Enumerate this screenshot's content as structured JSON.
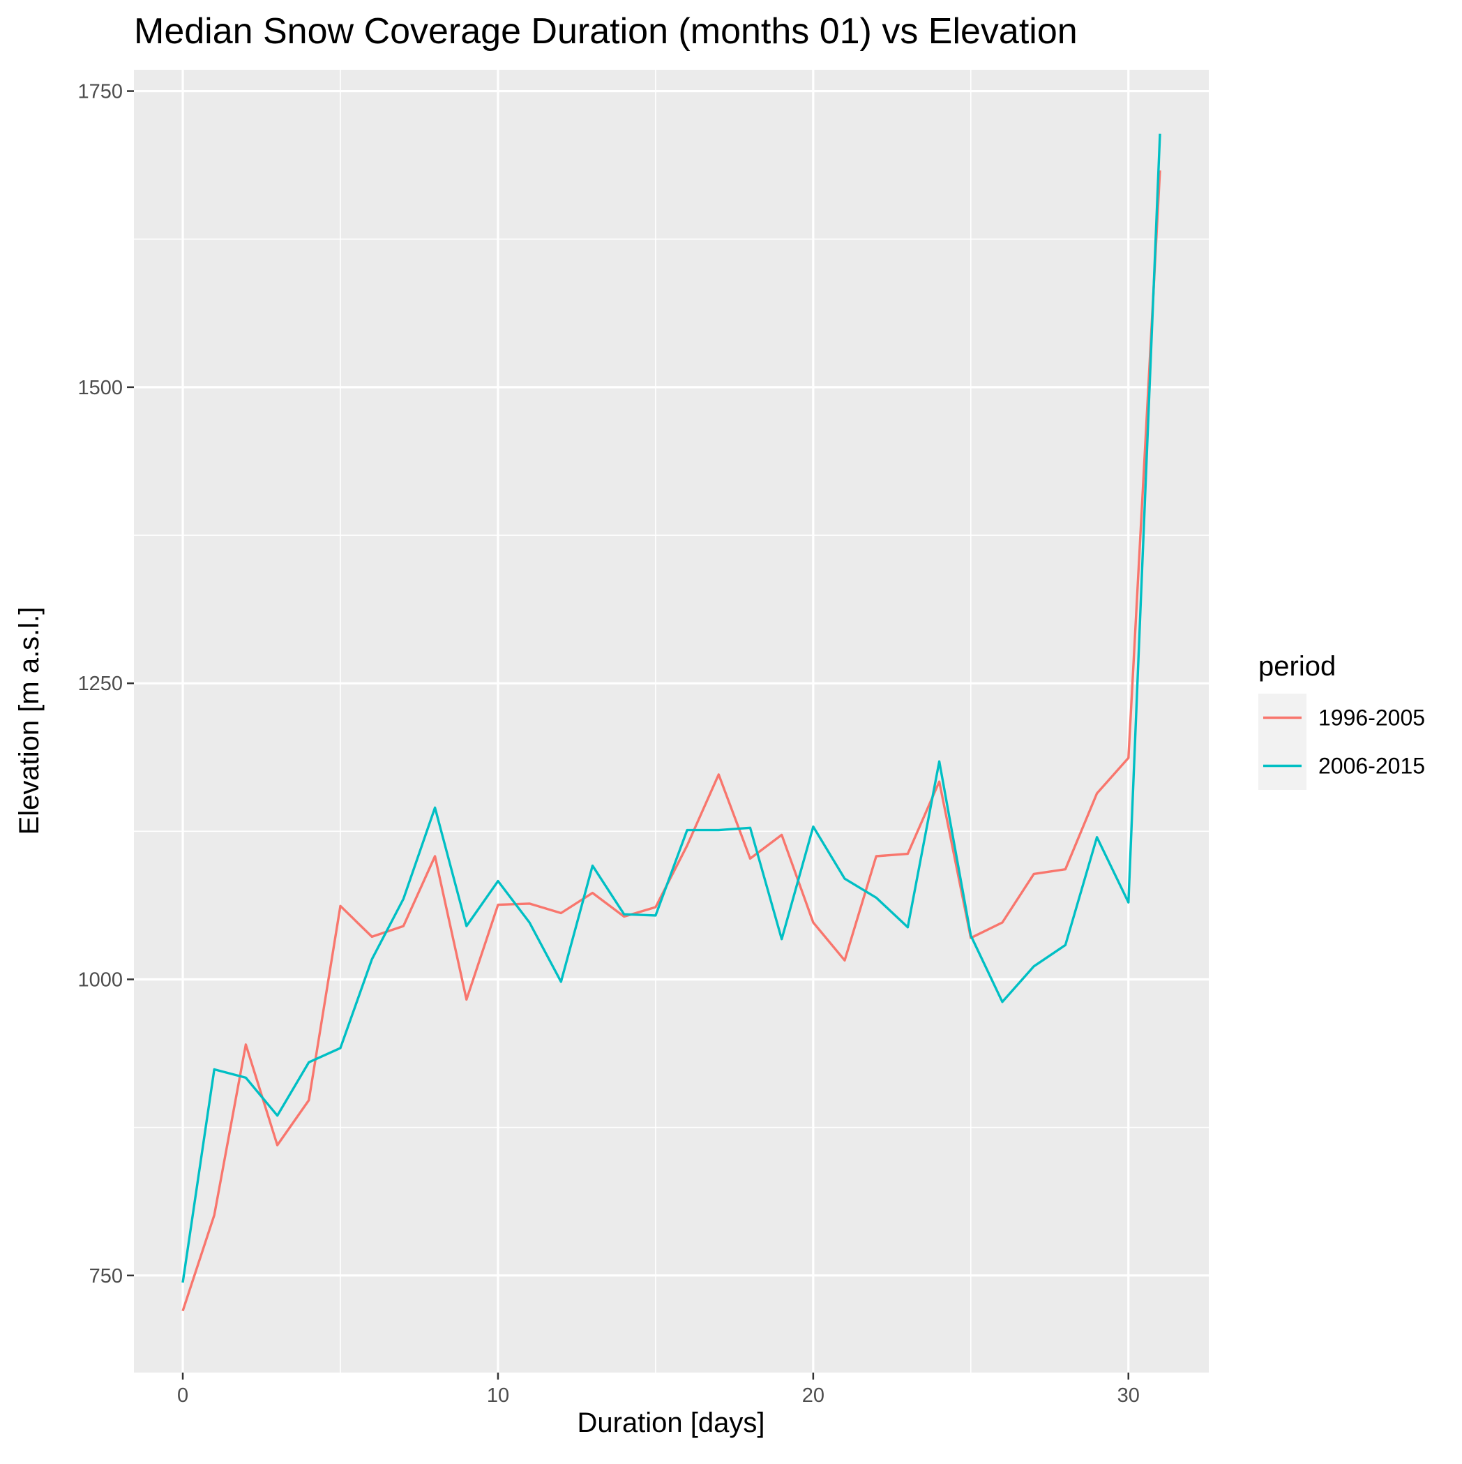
{
  "chart_data": {
    "type": "line",
    "title": "Median Snow Coverage Duration (months 01) vs Elevation",
    "xlabel": "Duration [days]",
    "ylabel": "Elevation [m a.s.l.]",
    "xlim": [
      -1.55,
      32.55
    ],
    "ylim": [
      668,
      1768
    ],
    "x_ticks": [
      0,
      10,
      20,
      30
    ],
    "y_ticks": [
      750,
      1000,
      1250,
      1500,
      1750
    ],
    "x_tick_labels": [
      "0",
      "10",
      "20",
      "30"
    ],
    "y_tick_labels": [
      "750",
      "1000",
      "1250",
      "1500",
      "1750"
    ],
    "grid": true,
    "legend": {
      "title": "period",
      "position": "right"
    },
    "x": [
      0,
      1,
      2,
      3,
      4,
      5,
      6,
      7,
      8,
      9,
      10,
      11,
      12,
      13,
      14,
      15,
      16,
      17,
      18,
      19,
      20,
      21,
      22,
      23,
      24,
      25,
      26,
      27,
      28,
      29,
      30,
      31
    ],
    "series": [
      {
        "name": "1996-2005",
        "color": "#F8766D",
        "values": [
          720,
          801,
          945,
          860,
          898,
          1062,
          1036,
          1045,
          1104,
          983,
          1063,
          1064,
          1056,
          1073,
          1053,
          1061,
          1113,
          1173,
          1102,
          1122,
          1048,
          1016,
          1104,
          1106,
          1167,
          1035,
          1048,
          1089,
          1093,
          1157,
          1187,
          1683
        ]
      },
      {
        "name": "2006-2015",
        "color": "#00BFC4",
        "values": [
          744,
          924,
          917,
          885,
          930,
          942,
          1017,
          1068,
          1145,
          1045,
          1083,
          1048,
          998,
          1096,
          1055,
          1054,
          1126,
          1126,
          1128,
          1034,
          1129,
          1085,
          1069,
          1044,
          1184,
          1037,
          981,
          1011,
          1029,
          1120,
          1065,
          1714
        ]
      }
    ]
  }
}
